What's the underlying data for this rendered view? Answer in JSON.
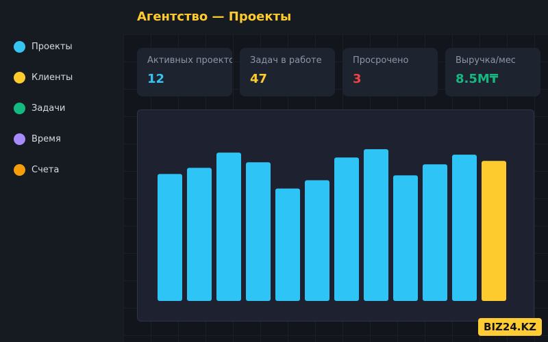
{
  "header": {
    "title": "Агентство — Проекты"
  },
  "sidebar": {
    "items": [
      {
        "label": "Проекты",
        "color": "#36c5f0"
      },
      {
        "label": "Клиенты",
        "color": "#fecb2f"
      },
      {
        "label": "Задачи",
        "color": "#13b981"
      },
      {
        "label": "Время",
        "color": "#a78bfa"
      },
      {
        "label": "Счета",
        "color": "#f59e0b"
      }
    ]
  },
  "stats": [
    {
      "label": "Активных проектов",
      "value": "12",
      "color": "#36c5f0"
    },
    {
      "label": "Задач в работе",
      "value": "47",
      "color": "#fecb2f"
    },
    {
      "label": "Просрочено",
      "value": "3",
      "color": "#ef4444"
    },
    {
      "label": "Выручка/мес",
      "value": "8.5M₸",
      "color": "#13b981"
    }
  ],
  "chart_data": {
    "type": "bar",
    "title": "",
    "xlabel": "",
    "ylabel": "",
    "grid": false,
    "legend": "none",
    "ylim": [
      0,
      230
    ],
    "categories": [
      "",
      "",
      "",
      "",
      "",
      "",
      "",
      "",
      "",
      "",
      "",
      ""
    ],
    "values": [
      184,
      193,
      215,
      201,
      163,
      175,
      208,
      220,
      182,
      198,
      212,
      203
    ],
    "bar_color": "#2ec4f5",
    "highlight_color": "#fecb2f",
    "highlight_index": 11
  },
  "brand": {
    "badge": "BIZ24.KZ"
  }
}
